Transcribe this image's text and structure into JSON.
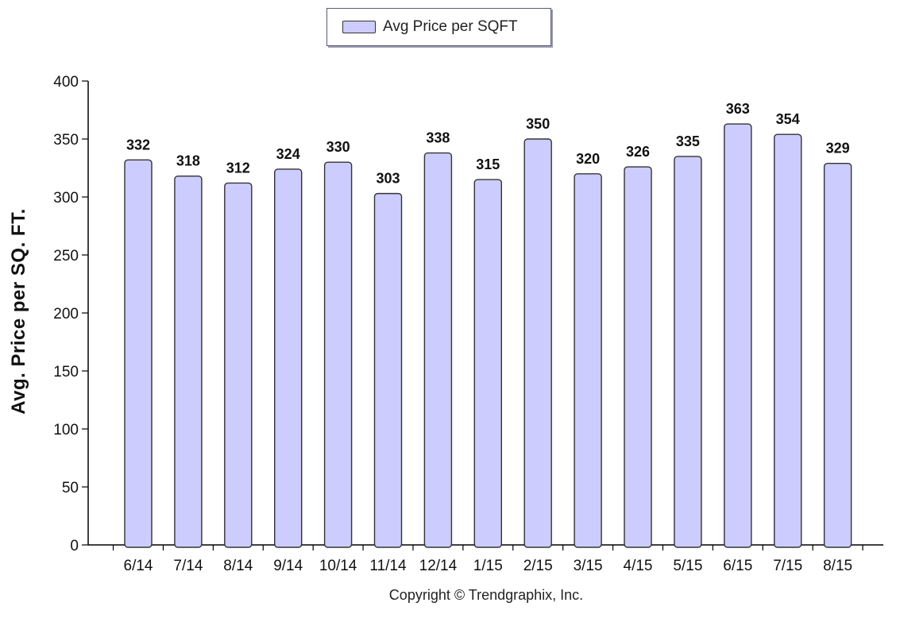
{
  "chart_data": {
    "type": "bar",
    "legend": {
      "label": "Avg Price per SQFT",
      "placement": "top-center"
    },
    "ylabel": "Avg. Price per SQ. FT.",
    "categories": [
      "6/14",
      "7/14",
      "8/14",
      "9/14",
      "10/14",
      "11/14",
      "12/14",
      "1/15",
      "2/15",
      "3/15",
      "4/15",
      "5/15",
      "6/15",
      "7/15",
      "8/15"
    ],
    "series": [
      {
        "name": "Avg Price per SQFT",
        "values": [
          332,
          318,
          312,
          324,
          330,
          303,
          338,
          315,
          350,
          320,
          326,
          335,
          363,
          354,
          329
        ]
      }
    ],
    "ylim": [
      0,
      400
    ],
    "yticks": [
      0,
      50,
      100,
      150,
      200,
      250,
      300,
      350,
      400
    ],
    "grid": false,
    "bar_color": "#ccccff",
    "bar_edge_color": "#333333",
    "copyright": "Copyright © Trendgraphix, Inc."
  }
}
